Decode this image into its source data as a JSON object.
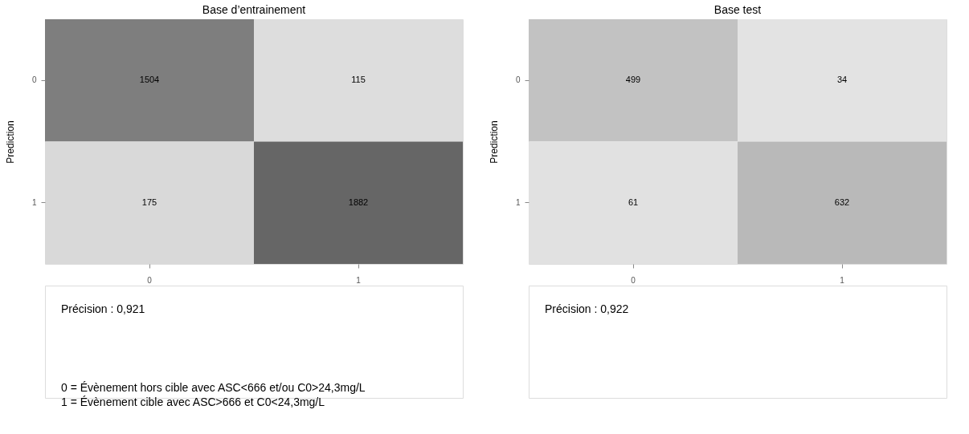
{
  "chart_data": [
    {
      "type": "heatmap",
      "title": "Base d’entrainement",
      "ylabel": "Prediction",
      "categories": [
        "0",
        "1"
      ],
      "y_categories": [
        "0",
        "1"
      ],
      "cells": [
        [
          1504,
          115
        ],
        [
          175,
          1882
        ]
      ],
      "data_labels": true,
      "annotations": [
        "Précision : 0,921",
        "0 = Évènement hors cible avec ASC<666 et/ou C0>24,3mg/L",
        "1 = Évènement cible avec ASC>666 et C0<24,3mg/L"
      ]
    },
    {
      "type": "heatmap",
      "title": "Base test",
      "ylabel": "Prediction",
      "categories": [
        "0",
        "1"
      ],
      "y_categories": [
        "0",
        "1"
      ],
      "cells": [
        [
          499,
          34
        ],
        [
          61,
          632
        ]
      ],
      "data_labels": true,
      "annotations": [
        "Précision : 0,922"
      ]
    }
  ]
}
